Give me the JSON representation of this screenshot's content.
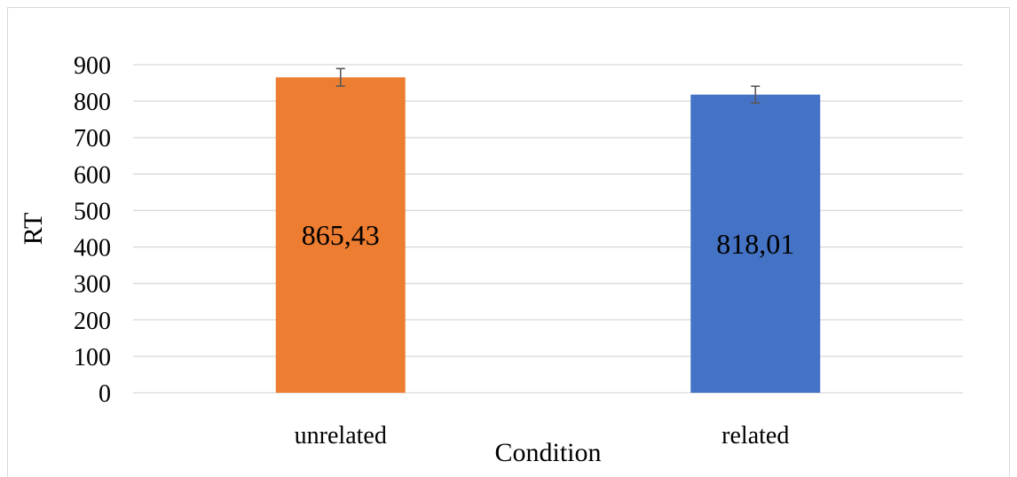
{
  "chart_data": {
    "type": "bar",
    "categories": [
      "unrelated",
      "related"
    ],
    "values": [
      865.43,
      818.01
    ],
    "data_labels": [
      "865,43",
      "818,01"
    ],
    "error": [
      24,
      23
    ],
    "colors": [
      "#ed7d31",
      "#4472c4"
    ],
    "xlabel": "Condition",
    "ylabel": "RT",
    "ylim": [
      0,
      900
    ],
    "yticks": [
      0,
      100,
      200,
      300,
      400,
      500,
      600,
      700,
      800,
      900
    ],
    "grid": true,
    "legend": "none"
  }
}
